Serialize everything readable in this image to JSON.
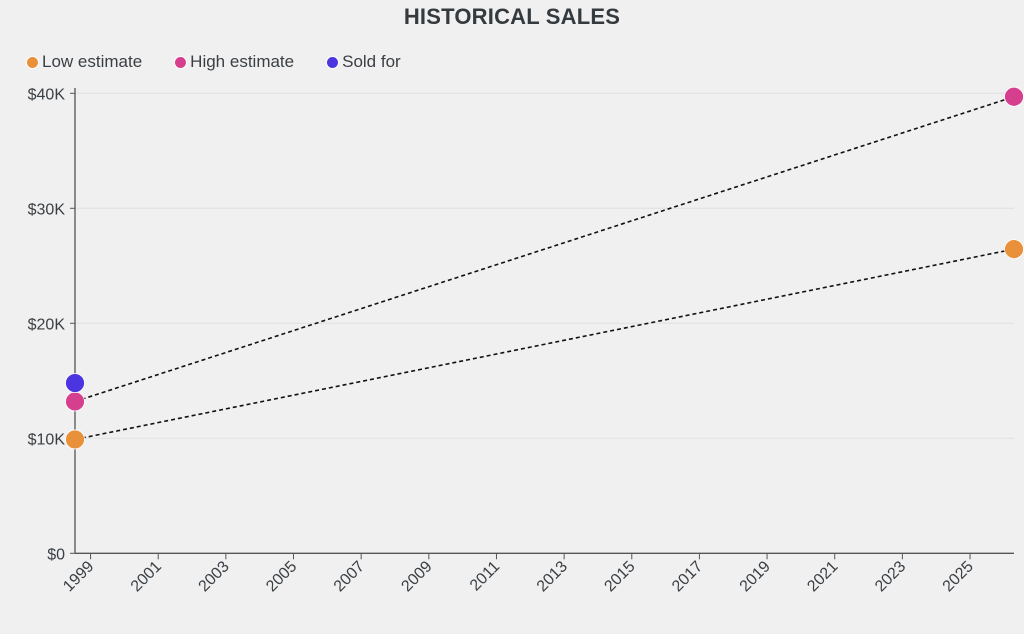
{
  "chart_data": {
    "type": "scatter",
    "title": "HISTORICAL SALES",
    "xlabel": "",
    "ylabel": "",
    "xlim": [
      1998.54,
      2026.3
    ],
    "ylim": [
      0,
      40400
    ],
    "grid": "horizontal",
    "legend_position": "top-left",
    "x_ticks": [
      1999,
      2001,
      2003,
      2005,
      2007,
      2009,
      2011,
      2013,
      2015,
      2017,
      2019,
      2021,
      2023,
      2025
    ],
    "x_tick_labels": [
      "1999",
      "2001",
      "2003",
      "2005",
      "2007",
      "2009",
      "2011",
      "2013",
      "2015",
      "2017",
      "2019",
      "2021",
      "2023",
      "2025"
    ],
    "y_ticks": [
      0,
      10000,
      20000,
      30000,
      40000
    ],
    "y_tick_labels": [
      "$0",
      "$10K",
      "$20K",
      "$30K",
      "$40K"
    ],
    "series": [
      {
        "name": "Low estimate",
        "color": "#E8903A",
        "points": [
          {
            "x": 1998.54,
            "y": 9900
          },
          {
            "x": 2026.3,
            "y": 26450
          }
        ],
        "connector": "dashed"
      },
      {
        "name": "High estimate",
        "color": "#D63F8E",
        "points": [
          {
            "x": 1998.54,
            "y": 13200
          },
          {
            "x": 2026.3,
            "y": 39700
          }
        ],
        "connector": "dashed"
      },
      {
        "name": "Sold for",
        "color": "#4B35E0",
        "points": [
          {
            "x": 1998.54,
            "y": 14800
          }
        ],
        "connector": "none"
      }
    ]
  }
}
